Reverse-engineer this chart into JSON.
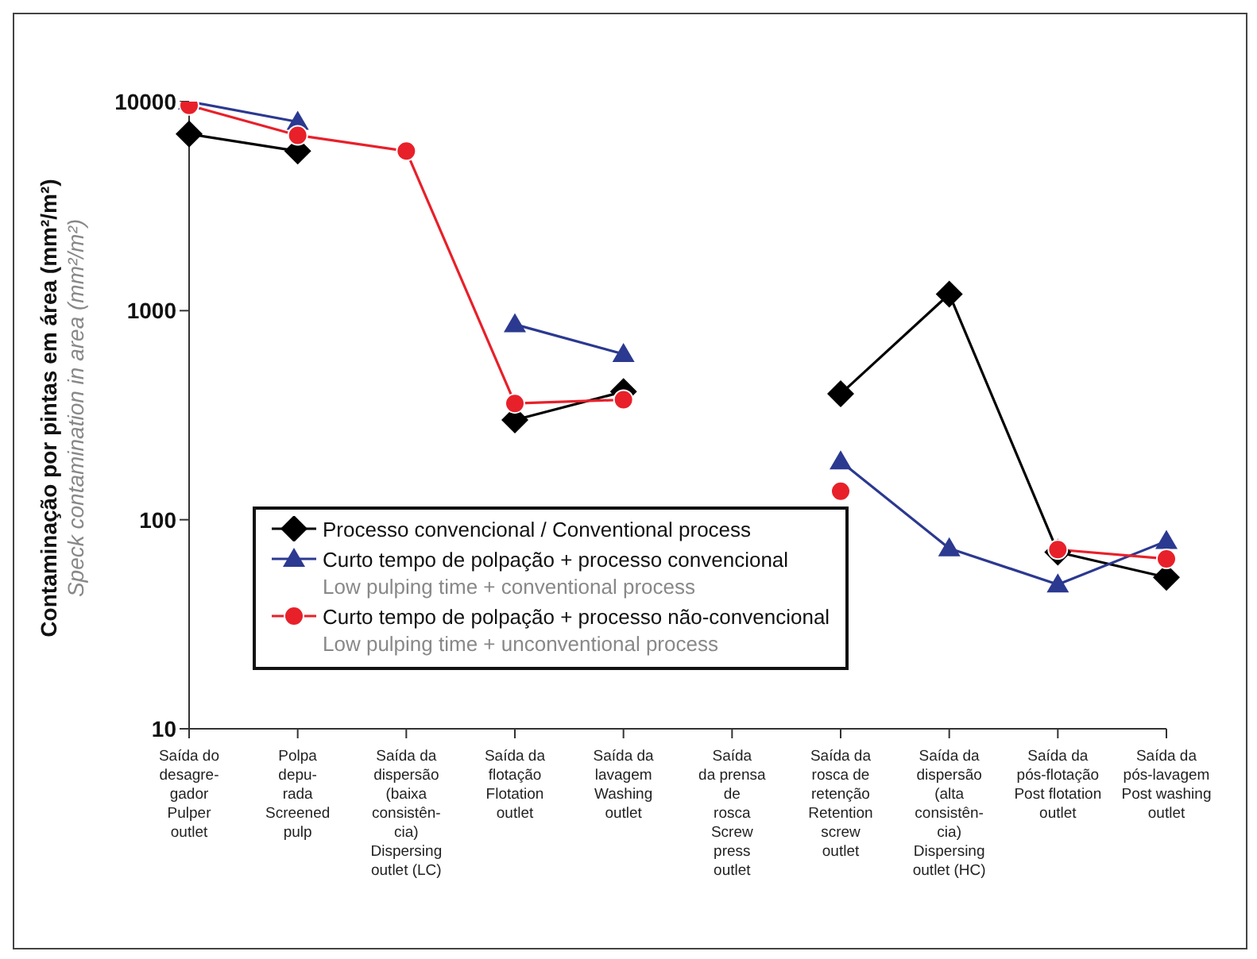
{
  "chart_data": {
    "type": "line",
    "ylabel": "Contaminação por pintas em área (mm²/m²)\nSpeck contamination in area (mm²/m²)",
    "categories": [
      "Saída do\ndesagre-\ngador\nPulper\noutlet",
      "Polpa\ndepu-\nrada\nScreened\npulp",
      "Saída da\ndispersão\n(baixa\nconsistên-\ncia)\nDispersing\noutlet (LC)",
      "Saída da\nflotação\nFlotation\noutlet",
      "Saída da\nlavagem\nWashing\noutlet",
      "Saída\nda prensa\nde\nrosca\nScrew\npress\noutlet",
      "Saída da\nrosca de\nretenção\nRetention\nscrew\noutlet",
      "Saída da\ndispersão\n(alta\nconsistên-\ncia)\nDispersing\noutlet (HC)",
      "Saída da\npós-flotação\nPost flotation\noutlet",
      "Saída da\npós-lavagem\nPost washing\noutlet"
    ],
    "series": [
      {
        "name": "Processo convencional / Conventional process",
        "color": "#000000",
        "marker": "diamond",
        "values": [
          7000,
          5800,
          null,
          300,
          410,
          null,
          400,
          1200,
          70,
          53
        ]
      },
      {
        "name": "Curto tempo de polpação + processo convencional\nLow pulping time + conventional process",
        "color": "#2b3990",
        "marker": "triangle",
        "values": [
          10000,
          8000,
          null,
          860,
          620,
          null,
          190,
          73,
          49,
          79
        ]
      },
      {
        "name": "Curto tempo de polpação + processo não-convencional\nLow pulping time + unconventional process",
        "color": "#e8202a",
        "marker": "circle",
        "values": [
          9600,
          6900,
          5800,
          360,
          375,
          null,
          137,
          null,
          72,
          65
        ]
      }
    ],
    "log": true,
    "ylim": [
      10,
      10000
    ],
    "yticks": [
      10,
      100,
      1000,
      10000
    ],
    "legend": "bottom left"
  }
}
